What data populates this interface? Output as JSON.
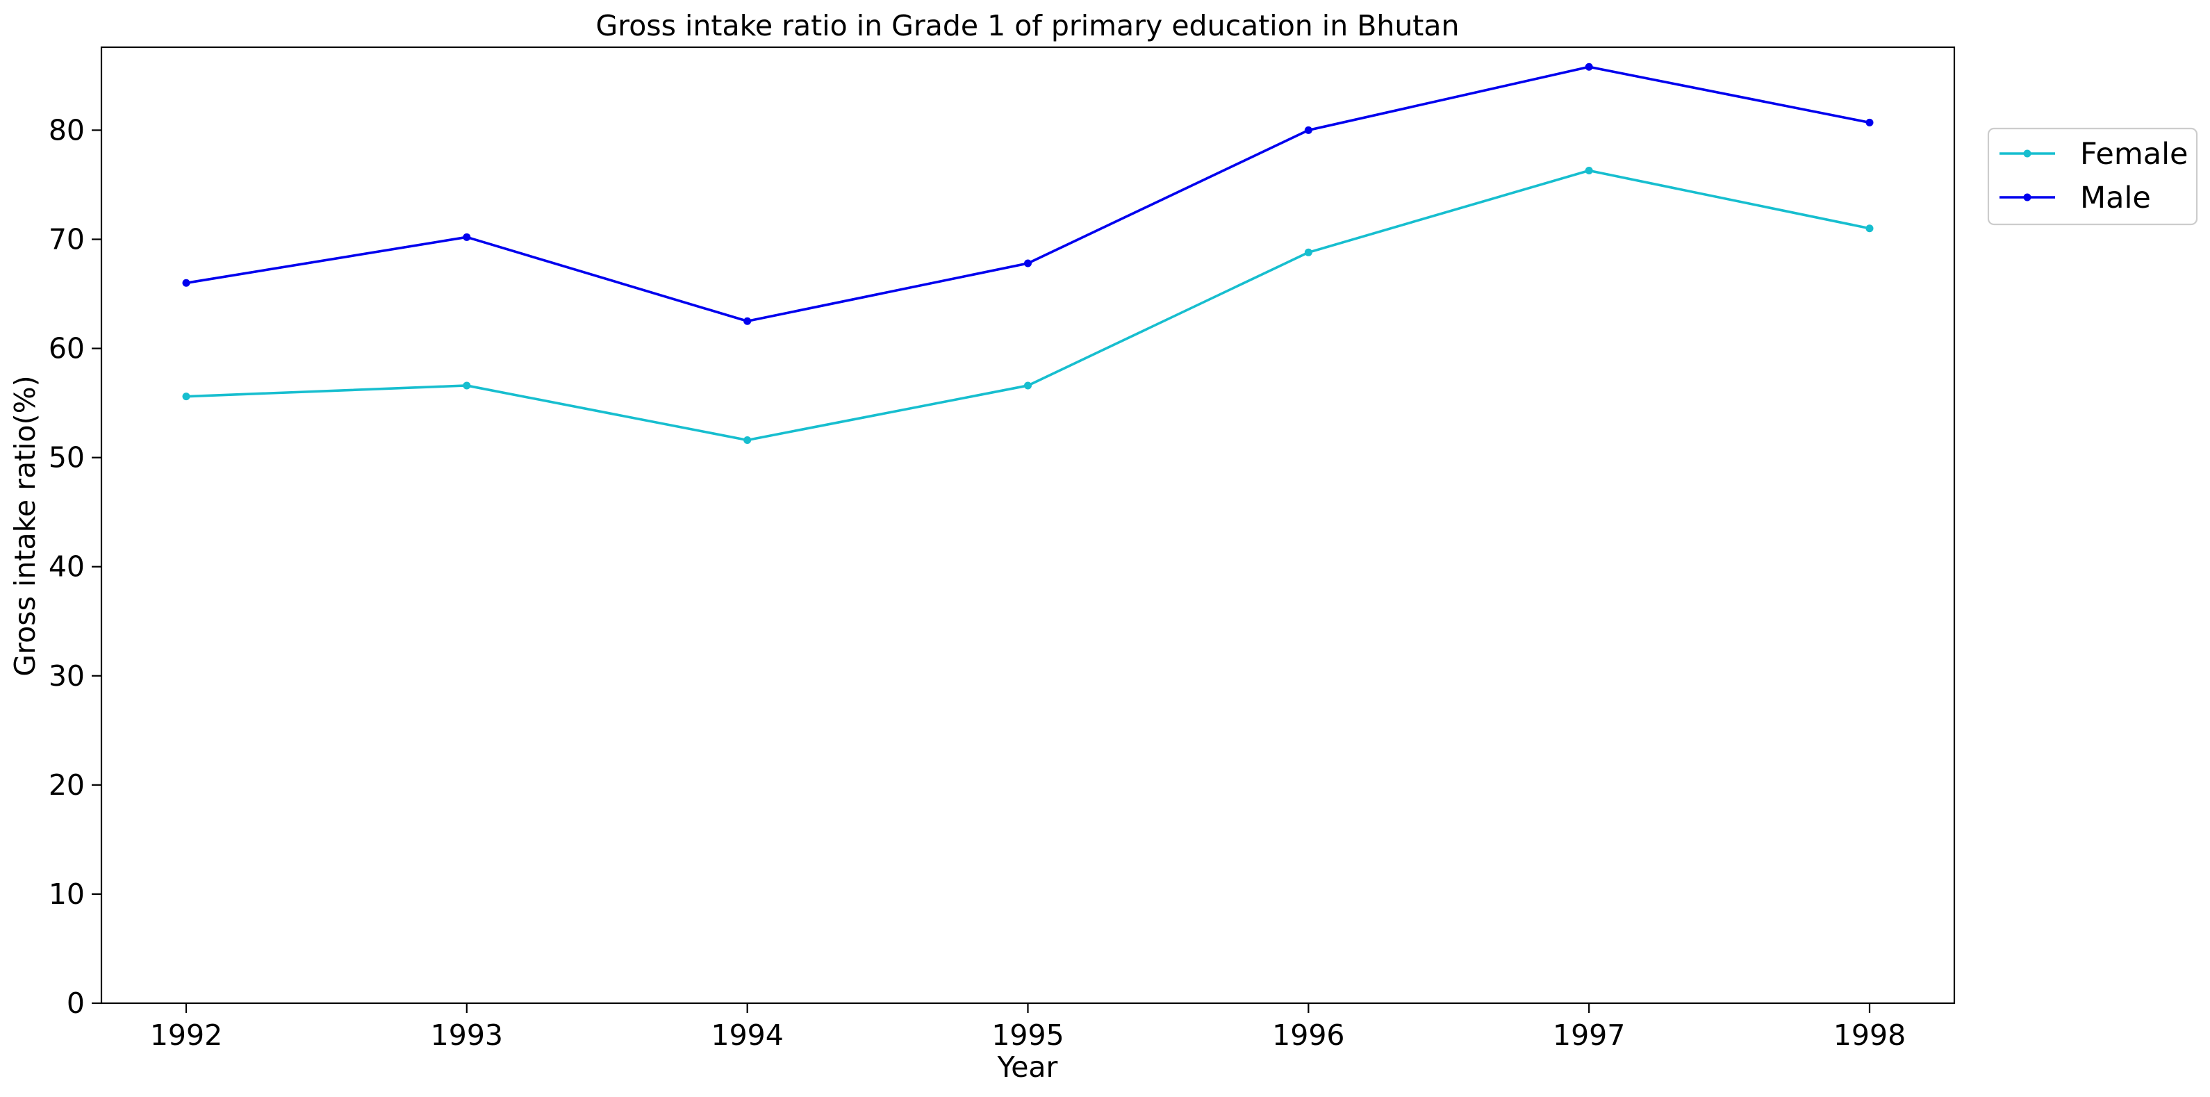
{
  "chart_data": {
    "type": "line",
    "title": "Gross intake ratio in Grade 1 of primary education in Bhutan",
    "xlabel": "Year",
    "ylabel": "Gross intake ratio(%)",
    "x": [
      "1992",
      "1993",
      "1994",
      "1995",
      "1996",
      "1997",
      "1998"
    ],
    "ylim": [
      0,
      87.6
    ],
    "yticks": [
      0,
      10,
      20,
      30,
      40,
      50,
      60,
      70,
      80
    ],
    "grid": false,
    "legend_position": "right, outside plot area",
    "series": [
      {
        "name": "Female",
        "color": "#17becf",
        "marker": "dot",
        "values": [
          55.6,
          56.6,
          51.6,
          56.6,
          68.8,
          76.3,
          71.0
        ]
      },
      {
        "name": "Male",
        "color": "#0000ee",
        "marker": "dot",
        "values": [
          66.0,
          70.2,
          62.5,
          67.8,
          80.0,
          85.8,
          80.7
        ]
      }
    ]
  }
}
